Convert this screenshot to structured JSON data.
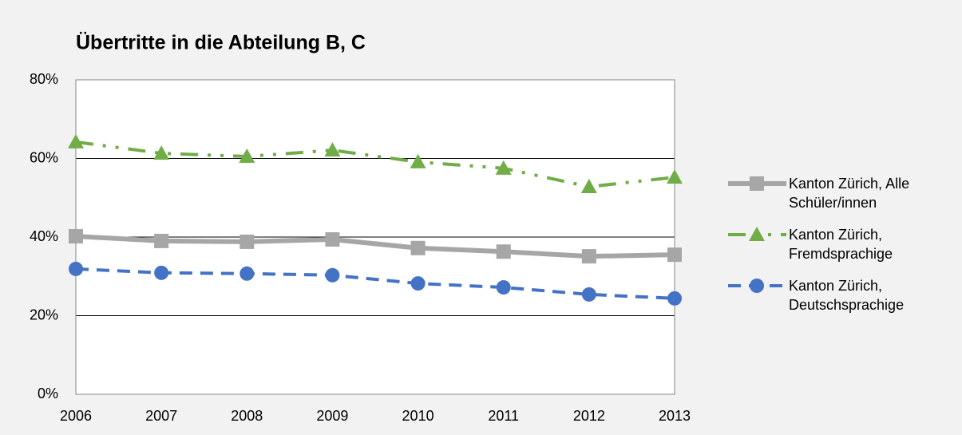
{
  "chart_data": {
    "type": "line",
    "title": "Übertritte in die Abteilung B, C",
    "categories": [
      "2006",
      "2007",
      "2008",
      "2009",
      "2010",
      "2011",
      "2012",
      "2013"
    ],
    "series": [
      {
        "name": "Kanton Zürich, Alle Schüler/innen",
        "color": "#a6a6a6",
        "marker": "square",
        "line_style": "solid",
        "values": [
          40.2,
          39.0,
          38.8,
          39.4,
          37.2,
          36.3,
          35.1,
          35.5
        ]
      },
      {
        "name": "Kanton Zürich, Fremdsprachige",
        "color": "#70ad47",
        "marker": "triangle",
        "line_style": "dash-dot-dot",
        "values": [
          64.2,
          61.3,
          60.5,
          62.1,
          59.1,
          57.5,
          52.8,
          55.2
        ]
      },
      {
        "name": "Kanton Zürich, Deutschsprachige",
        "color": "#4472c4",
        "marker": "circle",
        "line_style": "dashed",
        "values": [
          31.9,
          30.9,
          30.7,
          30.3,
          28.2,
          27.2,
          25.4,
          24.4
        ]
      }
    ],
    "ylim": [
      0,
      80
    ],
    "yticks": [
      {
        "value": 0,
        "label": "0%"
      },
      {
        "value": 20,
        "label": "20%"
      },
      {
        "value": 40,
        "label": "40%"
      },
      {
        "value": 60,
        "label": "60%"
      },
      {
        "value": 80,
        "label": "80%"
      }
    ],
    "grid": true,
    "legend": "right"
  }
}
